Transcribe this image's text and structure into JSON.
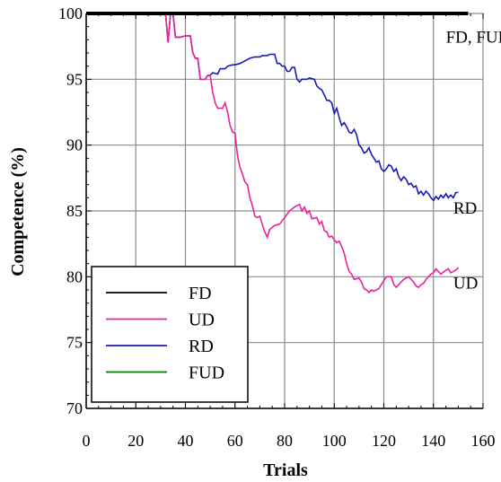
{
  "chart_data": {
    "type": "line",
    "xlabel": "Trials",
    "ylabel": "Competence (%)",
    "xlim": [
      0,
      160
    ],
    "ylim": [
      70,
      100
    ],
    "x_ticks": [
      0,
      20,
      40,
      60,
      80,
      100,
      120,
      140,
      160
    ],
    "y_ticks": [
      70,
      75,
      80,
      85,
      90,
      95,
      100
    ],
    "grid": true,
    "legend_position": "bottom-left",
    "series": [
      {
        "name": "FD",
        "color": "#000000",
        "points": [
          [
            0,
            100
          ],
          [
            154,
            100
          ]
        ]
      },
      {
        "name": "UD",
        "color": "#e8239a",
        "points": [
          [
            32,
            100
          ],
          [
            33,
            97.8
          ],
          [
            34,
            100
          ],
          [
            35,
            100
          ],
          [
            36,
            98.2
          ],
          [
            38,
            98.2
          ],
          [
            40,
            98.3
          ],
          [
            42,
            98.3
          ],
          [
            43,
            97.0
          ],
          [
            44,
            96.6
          ],
          [
            45,
            96.6
          ],
          [
            46,
            95.0
          ],
          [
            48,
            95.0
          ],
          [
            49,
            95.3
          ],
          [
            50,
            95.3
          ],
          [
            51,
            94.0
          ],
          [
            52,
            93.2
          ],
          [
            53,
            92.8
          ],
          [
            55,
            92.8
          ],
          [
            56,
            93.2
          ],
          [
            57,
            92.5
          ],
          [
            58,
            91.5
          ],
          [
            59,
            91.0
          ],
          [
            60,
            90.9
          ],
          [
            61,
            89.2
          ],
          [
            62,
            88.3
          ],
          [
            63,
            87.8
          ],
          [
            64,
            87.2
          ],
          [
            65,
            87.0
          ],
          [
            66,
            86.0
          ],
          [
            67,
            85.4
          ],
          [
            68,
            84.6
          ],
          [
            69,
            84.5
          ],
          [
            70,
            84.6
          ],
          [
            71,
            84.0
          ],
          [
            72,
            83.4
          ],
          [
            73,
            83.0
          ],
          [
            74,
            83.6
          ],
          [
            76,
            83.9
          ],
          [
            78,
            84.0
          ],
          [
            80,
            84.5
          ],
          [
            82,
            85.0
          ],
          [
            84,
            85.3
          ],
          [
            86,
            85.5
          ],
          [
            87,
            85.0
          ],
          [
            88,
            85.3
          ],
          [
            89,
            84.8
          ],
          [
            90,
            85.0
          ],
          [
            91,
            84.4
          ],
          [
            93,
            84.5
          ],
          [
            94,
            84.0
          ],
          [
            95,
            84.2
          ],
          [
            96,
            83.5
          ],
          [
            97,
            83.4
          ],
          [
            98,
            83.0
          ],
          [
            99,
            83.1
          ],
          [
            100,
            82.8
          ],
          [
            101,
            82.6
          ],
          [
            102,
            82.7
          ],
          [
            103,
            82.3
          ],
          [
            104,
            81.8
          ],
          [
            105,
            81.0
          ],
          [
            106,
            80.4
          ],
          [
            107,
            80.2
          ],
          [
            108,
            79.8
          ],
          [
            110,
            79.9
          ],
          [
            111,
            79.6
          ],
          [
            112,
            79.1
          ],
          [
            113,
            79.0
          ],
          [
            114,
            78.8
          ],
          [
            115,
            79.0
          ],
          [
            116,
            78.9
          ],
          [
            118,
            79.1
          ],
          [
            119,
            79.4
          ],
          [
            120,
            79.7
          ],
          [
            121,
            80.0
          ],
          [
            123,
            80.0
          ],
          [
            124,
            79.4
          ],
          [
            125,
            79.2
          ],
          [
            126,
            79.4
          ],
          [
            127,
            79.6
          ],
          [
            128,
            79.8
          ],
          [
            130,
            80.0
          ],
          [
            131,
            79.8
          ],
          [
            132,
            79.6
          ],
          [
            133,
            79.3
          ],
          [
            134,
            79.2
          ],
          [
            135,
            79.4
          ],
          [
            136,
            79.5
          ],
          [
            137,
            79.8
          ],
          [
            138,
            80.0
          ],
          [
            139,
            80.2
          ],
          [
            140,
            80.3
          ],
          [
            141,
            80.6
          ],
          [
            142,
            80.4
          ],
          [
            143,
            80.2
          ],
          [
            145,
            80.5
          ],
          [
            146,
            80.6
          ],
          [
            147,
            80.3
          ],
          [
            149,
            80.5
          ],
          [
            150,
            80.7
          ]
        ]
      },
      {
        "name": "RD",
        "color": "#1a1ab8",
        "points": [
          [
            32,
            100
          ],
          [
            33,
            97.8
          ],
          [
            34,
            100
          ],
          [
            35,
            100
          ],
          [
            36,
            98.2
          ],
          [
            38,
            98.2
          ],
          [
            40,
            98.3
          ],
          [
            42,
            98.3
          ],
          [
            43,
            97.0
          ],
          [
            44,
            96.6
          ],
          [
            45,
            96.6
          ],
          [
            46,
            95.0
          ],
          [
            48,
            95.0
          ],
          [
            49,
            95.3
          ],
          [
            50,
            95.3
          ],
          [
            51,
            95.5
          ],
          [
            53,
            95.4
          ],
          [
            54,
            95.8
          ],
          [
            56,
            95.8
          ],
          [
            57,
            96.0
          ],
          [
            59,
            96.1
          ],
          [
            60,
            96.1
          ],
          [
            62,
            96.2
          ],
          [
            63,
            96.3
          ],
          [
            65,
            96.5
          ],
          [
            66,
            96.6
          ],
          [
            68,
            96.7
          ],
          [
            70,
            96.7
          ],
          [
            71,
            96.8
          ],
          [
            73,
            96.8
          ],
          [
            74,
            96.9
          ],
          [
            76,
            96.9
          ],
          [
            77,
            96.2
          ],
          [
            78,
            96.2
          ],
          [
            79,
            96.0
          ],
          [
            80,
            96.0
          ],
          [
            81,
            95.6
          ],
          [
            82,
            95.6
          ],
          [
            83,
            95.9
          ],
          [
            84,
            95.9
          ],
          [
            85,
            95.0
          ],
          [
            86,
            94.8
          ],
          [
            87,
            95.0
          ],
          [
            89,
            95.0
          ],
          [
            90,
            95.1
          ],
          [
            92,
            95.0
          ],
          [
            93,
            94.5
          ],
          [
            94,
            94.3
          ],
          [
            95,
            94.2
          ],
          [
            96,
            93.8
          ],
          [
            97,
            93.4
          ],
          [
            98,
            93.4
          ],
          [
            99,
            93.2
          ],
          [
            100,
            92.4
          ],
          [
            101,
            92.8
          ],
          [
            102,
            92.1
          ],
          [
            103,
            91.5
          ],
          [
            104,
            91.7
          ],
          [
            105,
            91.4
          ],
          [
            106,
            91.0
          ],
          [
            107,
            90.9
          ],
          [
            108,
            91.2
          ],
          [
            109,
            90.8
          ],
          [
            110,
            90.0
          ],
          [
            111,
            89.8
          ],
          [
            112,
            89.4
          ],
          [
            113,
            89.5
          ],
          [
            114,
            89.8
          ],
          [
            115,
            89.3
          ],
          [
            116,
            89.0
          ],
          [
            117,
            88.7
          ],
          [
            118,
            88.8
          ],
          [
            119,
            88.2
          ],
          [
            120,
            88.0
          ],
          [
            121,
            88.2
          ],
          [
            122,
            88.5
          ],
          [
            123,
            88.4
          ],
          [
            124,
            88.0
          ],
          [
            125,
            88.2
          ],
          [
            126,
            87.6
          ],
          [
            127,
            87.3
          ],
          [
            128,
            87.6
          ],
          [
            129,
            87.4
          ],
          [
            130,
            87.0
          ],
          [
            131,
            87.1
          ],
          [
            132,
            86.8
          ],
          [
            133,
            86.9
          ],
          [
            134,
            86.3
          ],
          [
            135,
            86.5
          ],
          [
            136,
            86.2
          ],
          [
            137,
            86.5
          ],
          [
            138,
            86.3
          ],
          [
            139,
            86.0
          ],
          [
            140,
            85.8
          ],
          [
            141,
            86.1
          ],
          [
            142,
            85.9
          ],
          [
            143,
            86.2
          ],
          [
            144,
            86.0
          ],
          [
            145,
            86.3
          ],
          [
            146,
            86.0
          ],
          [
            147,
            86.2
          ],
          [
            148,
            86.0
          ],
          [
            149,
            86.4
          ],
          [
            150,
            86.4
          ]
        ]
      },
      {
        "name": "FUD",
        "color": "#0d7a0d",
        "points": []
      }
    ],
    "annotations": [
      {
        "text": "FD, FUD",
        "x": 145,
        "y": 98.2
      },
      {
        "text": "RD",
        "x": 148,
        "y": 85.2
      },
      {
        "text": "UD",
        "x": 148,
        "y": 79.5
      }
    ]
  }
}
